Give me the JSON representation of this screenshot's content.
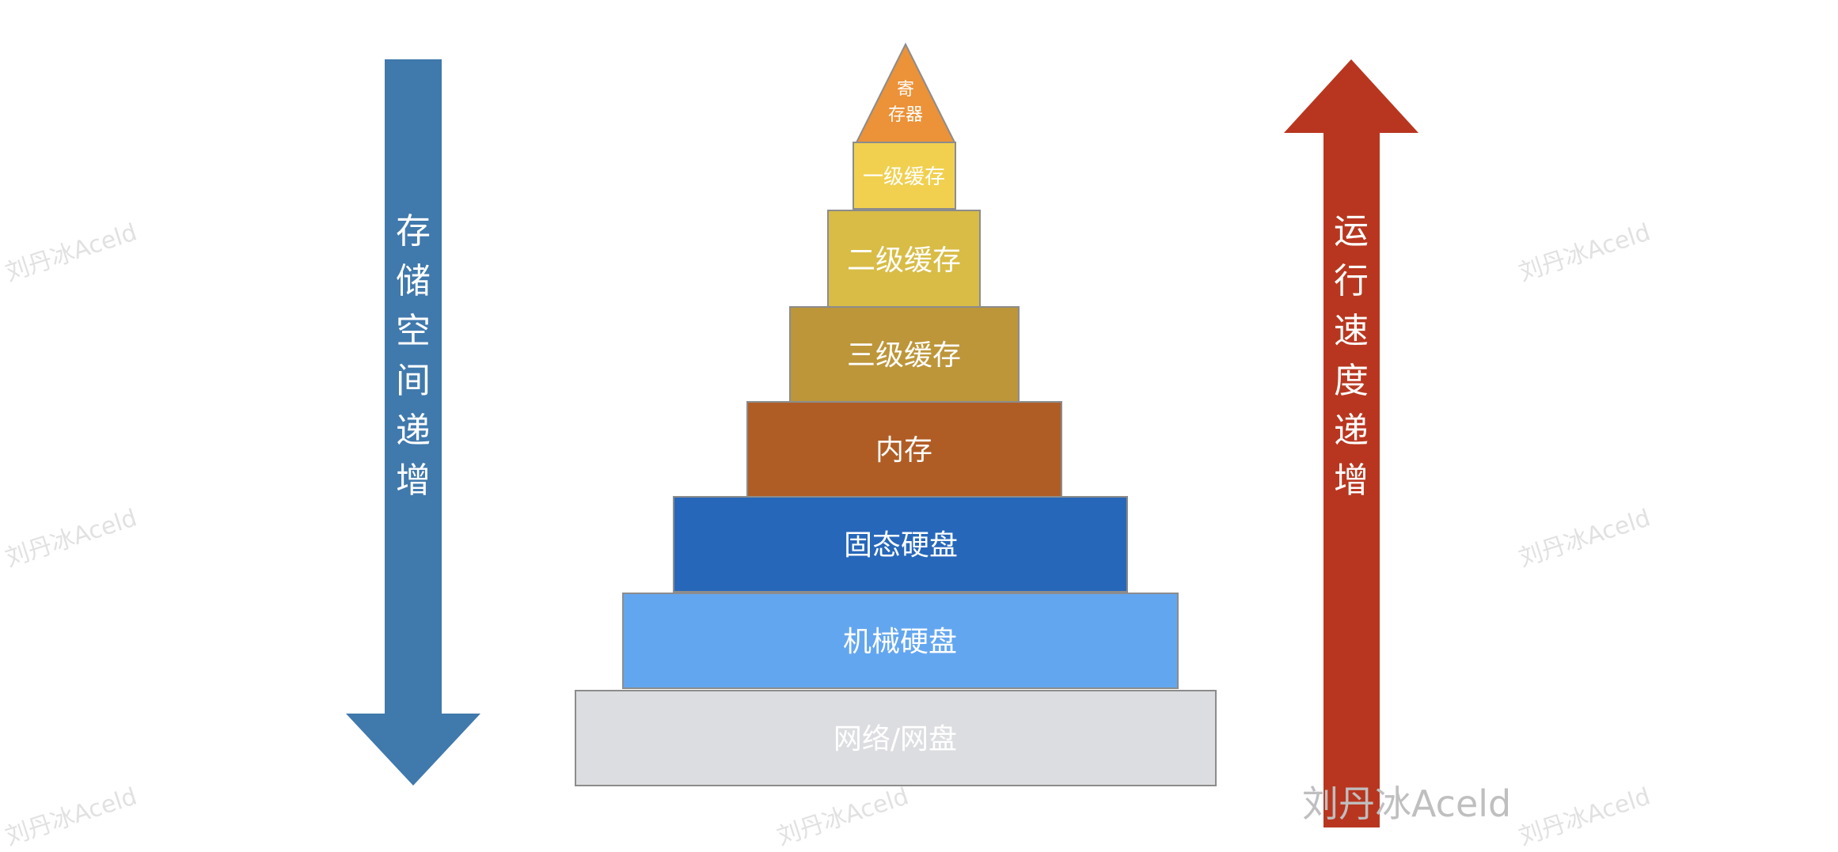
{
  "diagram": {
    "levels": [
      {
        "label": "寄存器",
        "color": "#ec9238",
        "shape": "triangle"
      },
      {
        "label": "一级缓存",
        "color": "#f1d04f"
      },
      {
        "label": "二级缓存",
        "color": "#d8bc45"
      },
      {
        "label": "三级缓存",
        "color": "#bd963a"
      },
      {
        "label": "内存",
        "color": "#b05d25"
      },
      {
        "label": "固态硬盘",
        "color": "#2767ba"
      },
      {
        "label": "机械硬盘",
        "color": "#63a6f0"
      },
      {
        "label": "网络/网盘",
        "color": "#dcdde0"
      }
    ],
    "left_arrow": {
      "label": "存储空间递增",
      "color": "#4079ac",
      "direction": "down"
    },
    "right_arrow": {
      "label": "运行速度递增",
      "color": "#b8361f",
      "direction": "up"
    },
    "block_border_color": "#8c8c8c",
    "label_color": "#ffffff"
  },
  "watermark": {
    "text": "刘丹冰Aceld",
    "corner_text": "刘丹冰Aceld"
  }
}
